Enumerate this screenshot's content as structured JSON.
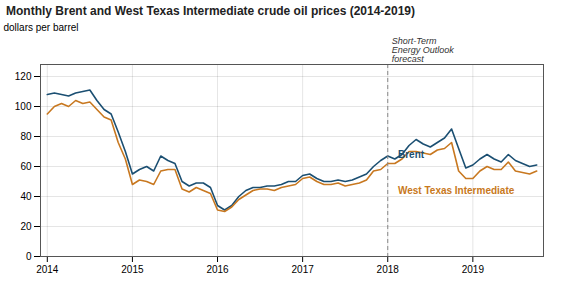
{
  "chart_data": {
    "type": "line",
    "title": "Monthly Brent and West Texas Intermediate crude oil prices (2014-2019)",
    "ylabel": "dollars per barrel",
    "x": [
      2014.0,
      2014.083,
      2014.167,
      2014.25,
      2014.333,
      2014.417,
      2014.5,
      2014.583,
      2014.667,
      2014.75,
      2014.833,
      2014.917,
      2015.0,
      2015.083,
      2015.167,
      2015.25,
      2015.333,
      2015.417,
      2015.5,
      2015.583,
      2015.667,
      2015.75,
      2015.833,
      2015.917,
      2016.0,
      2016.083,
      2016.167,
      2016.25,
      2016.333,
      2016.417,
      2016.5,
      2016.583,
      2016.667,
      2016.75,
      2016.833,
      2016.917,
      2017.0,
      2017.083,
      2017.167,
      2017.25,
      2017.333,
      2017.417,
      2017.5,
      2017.583,
      2017.667,
      2017.75,
      2017.833,
      2017.917,
      2018.0,
      2018.083,
      2018.167,
      2018.25,
      2018.333,
      2018.417,
      2018.5,
      2018.583,
      2018.667,
      2018.75,
      2018.833,
      2018.917,
      2019.0,
      2019.083,
      2019.167,
      2019.25,
      2019.333,
      2019.417,
      2019.5,
      2019.583,
      2019.667,
      2019.75
    ],
    "series": [
      {
        "name": "Brent",
        "color": "#1b4f72",
        "values": [
          108,
          109,
          108,
          107,
          109,
          110,
          111,
          104,
          98,
          95,
          83,
          70,
          55,
          58,
          60,
          57,
          67,
          64,
          62,
          50,
          47,
          49,
          49,
          46,
          34,
          31,
          34,
          40,
          44,
          46,
          46,
          47,
          47,
          48,
          50,
          50,
          54,
          55,
          52,
          50,
          50,
          51,
          50,
          51,
          53,
          55,
          60,
          64,
          67,
          65,
          68,
          74,
          78,
          75,
          73,
          76,
          79,
          85,
          72,
          59,
          61,
          65,
          68,
          65,
          63,
          68,
          64,
          62,
          60,
          61
        ]
      },
      {
        "name": "West Texas Intermediate",
        "color": "#c87820",
        "values": [
          95,
          100,
          102,
          100,
          104,
          102,
          103,
          98,
          93,
          91,
          76,
          65,
          48,
          51,
          50,
          48,
          57,
          58,
          58,
          45,
          43,
          46,
          44,
          42,
          31,
          30,
          33,
          38,
          41,
          44,
          45,
          45,
          44,
          46,
          47,
          48,
          52,
          53,
          50,
          48,
          48,
          49,
          47,
          48,
          49,
          51,
          57,
          58,
          62,
          62,
          65,
          70,
          70,
          69,
          68,
          71,
          72,
          76,
          57,
          52,
          52,
          57,
          60,
          58,
          58,
          63,
          57,
          56,
          55,
          57
        ]
      }
    ],
    "annotations": [
      {
        "type": "vline",
        "x": 2018.0,
        "lines": [
          "Short-Term",
          "Energy Outlook",
          "forecast"
        ]
      },
      {
        "type": "text",
        "text": "Brent",
        "x": 2018.12,
        "y": 68,
        "color": "#1b4f72"
      },
      {
        "type": "text",
        "text": "West Texas Intermediate",
        "x": 2018.12,
        "y": 44,
        "color": "#c87820"
      }
    ],
    "xlim": [
      2013.92,
      2019.83
    ],
    "xticks": [
      2014,
      2015,
      2016,
      2017,
      2018,
      2019
    ],
    "ylim": [
      0,
      128
    ],
    "yticks": [
      0,
      20,
      40,
      60,
      80,
      100,
      120
    ],
    "grid": true
  }
}
